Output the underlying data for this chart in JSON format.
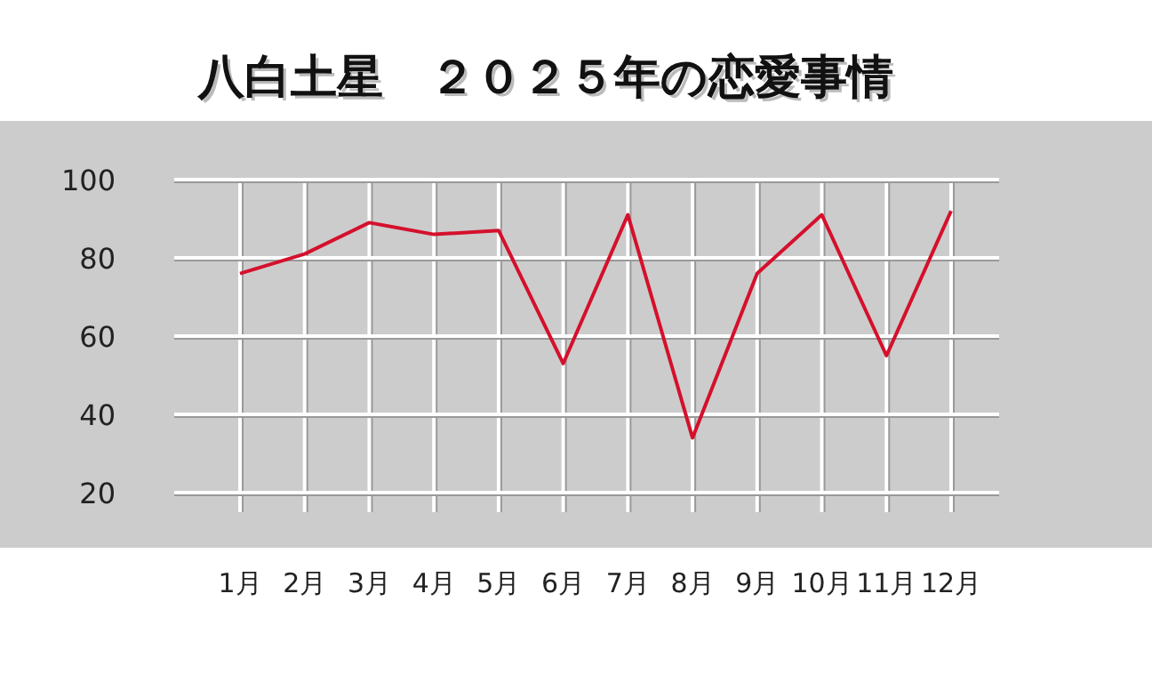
{
  "chart_data": {
    "type": "line",
    "title": "八白土星　２０２５年の恋愛事情",
    "categories": [
      "1月",
      "2月",
      "3月",
      "4月",
      "5月",
      "6月",
      "7月",
      "8月",
      "9月",
      "10月",
      "11月",
      "12月"
    ],
    "series": [
      {
        "color": "#d5102c",
        "values": [
          76,
          81,
          89,
          86,
          87,
          53,
          91,
          34,
          76,
          91,
          55,
          92
        ]
      }
    ],
    "ylim": [
      15,
      100
    ],
    "yticks": [
      20,
      40,
      60,
      80,
      100
    ],
    "grid": true,
    "marker": "none",
    "line_style": "solid"
  }
}
